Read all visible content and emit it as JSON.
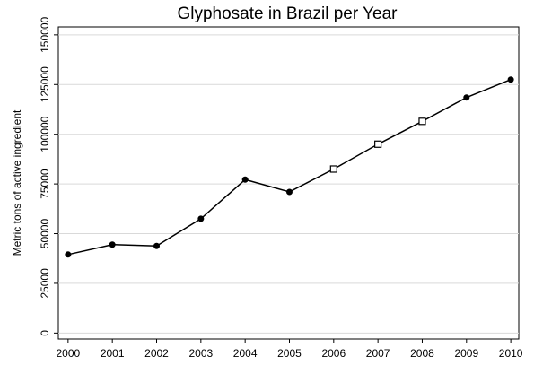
{
  "chart_data": {
    "type": "line",
    "title": "Glyphosate in Brazil per Year",
    "y_label": "Metric tons of active ingredient",
    "x": [
      2000,
      2001,
      2002,
      2003,
      2004,
      2005,
      2006,
      2007,
      2008,
      2009,
      2010
    ],
    "series": [
      {
        "color": "#000000",
        "values": [
          39500,
          44500,
          43800,
          57500,
          77200,
          71000,
          82500,
          95000,
          106500,
          118500,
          127500
        ],
        "markers": [
          "circle",
          "circle",
          "circle",
          "circle",
          "circle",
          "circle",
          "square",
          "square",
          "square",
          "circle",
          "circle"
        ]
      }
    ],
    "xlim": [
      1999.78,
      2010.18
    ],
    "xticks": [
      2000,
      2001,
      2002,
      2003,
      2004,
      2005,
      2006,
      2007,
      2008,
      2009,
      2010
    ],
    "ylim": [
      -3000,
      154000
    ],
    "yticks": [
      0,
      25000,
      50000,
      75000,
      100000,
      125000,
      150000
    ],
    "grid": true
  }
}
